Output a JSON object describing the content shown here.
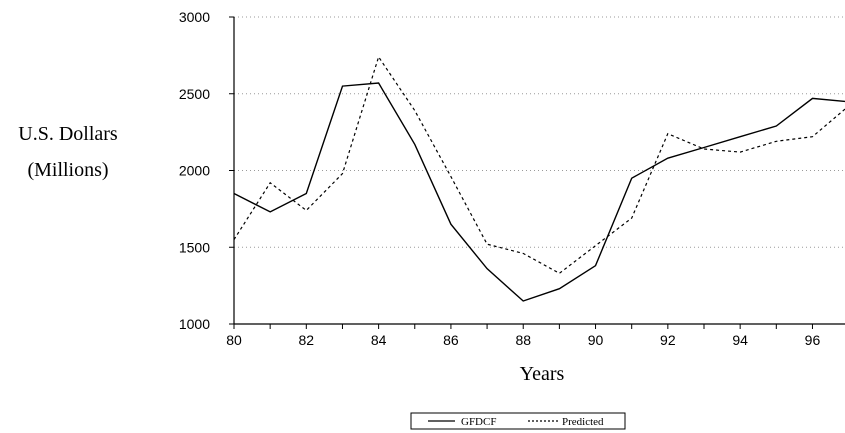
{
  "chart_data": {
    "type": "line",
    "title": "",
    "ylabel_line1": "U.S. Dollars",
    "ylabel_line2": "(Millions)",
    "xlabel": "Years",
    "xlim": [
      80,
      96.9
    ],
    "ylim": [
      1000,
      3000
    ],
    "x_ticks": [
      80,
      82,
      84,
      86,
      88,
      90,
      92,
      94,
      96
    ],
    "x_tick_labels": [
      "80",
      "82",
      "84",
      "86",
      "88",
      "90",
      "92",
      "94",
      "96"
    ],
    "y_ticks": [
      1000,
      1500,
      2000,
      2500,
      3000
    ],
    "y_tick_labels": [
      "1000",
      "1500",
      "2000",
      "2500",
      "3000"
    ],
    "grid": "horizontal dotted",
    "legend_position": "bottom-center",
    "x": [
      80,
      81,
      82,
      83,
      84,
      85,
      86,
      87,
      88,
      89,
      90,
      91,
      92,
      93,
      94,
      95,
      96,
      96.9
    ],
    "series": [
      {
        "name": "GFDCF",
        "style": "solid",
        "color": "#000000",
        "values": [
          1850,
          1730,
          1850,
          2550,
          2570,
          2170,
          1650,
          1360,
          1150,
          1230,
          1380,
          1950,
          2080,
          2150,
          2220,
          2290,
          2470,
          2450
        ]
      },
      {
        "name": "Predicted",
        "style": "dashed",
        "color": "#000000",
        "values": [
          1550,
          1920,
          1740,
          1980,
          2740,
          2390,
          1960,
          1520,
          1460,
          1330,
          1510,
          1690,
          2240,
          2140,
          2120,
          2190,
          2220,
          2400
        ]
      }
    ]
  }
}
